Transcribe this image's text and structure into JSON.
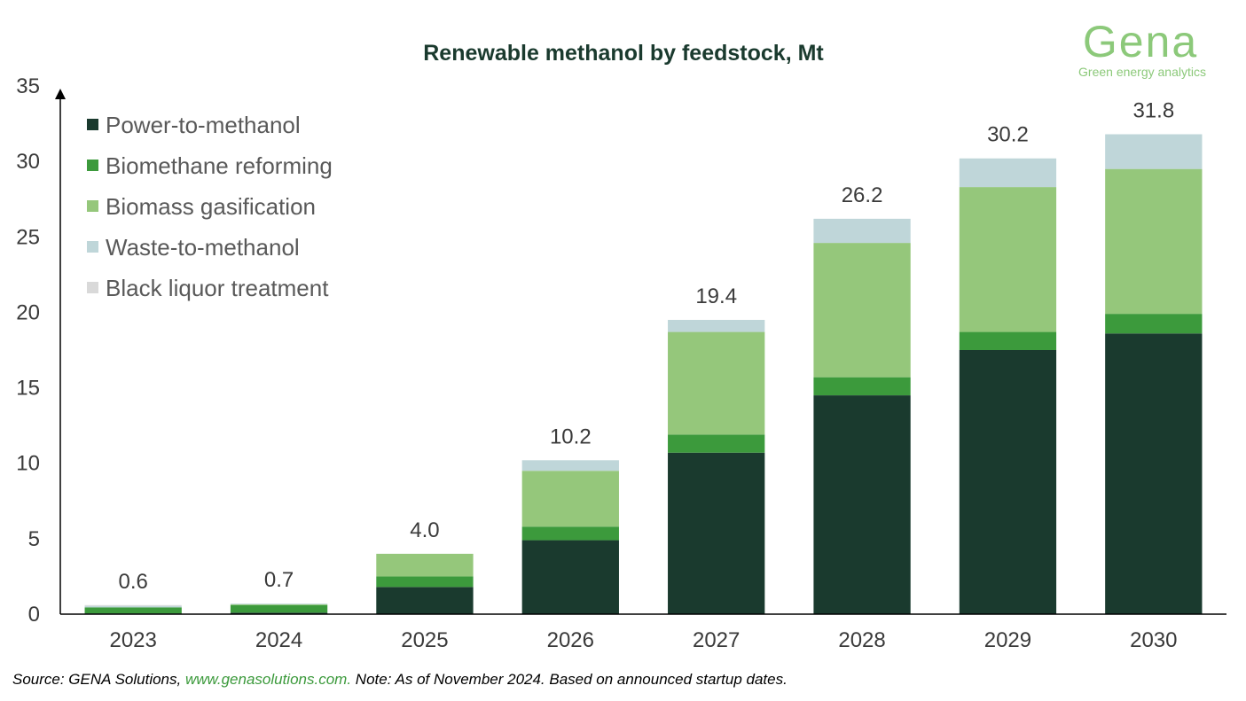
{
  "colors": {
    "title": "#1a3a2e",
    "power_to_methanol": "#1a3a2e",
    "biomethane_reforming": "#3c9a3c",
    "biomass_gasification": "#95c77b",
    "waste_to_methanol": "#bfd6d9",
    "black_liquor_treatment": "#d9d9d9",
    "logo": "#8cc97a",
    "link": "#3c9a3c"
  },
  "logo": {
    "word": "Gena",
    "tagline": "Green energy analytics"
  },
  "footer": {
    "source_prefix": "Source: GENA Solutions, ",
    "link_text": "www.genasolutions.com.",
    "note": " Note: As of November 2024. Based on announced startup dates."
  },
  "chart_data": {
    "type": "bar",
    "stacked": true,
    "title": "Renewable methanol by feedstock, Mt",
    "xlabel": "",
    "ylabel": "",
    "ylim": [
      0,
      35
    ],
    "yticks": [
      0,
      5,
      10,
      15,
      20,
      25,
      30,
      35
    ],
    "grid": false,
    "legend_position": "top-left",
    "categories": [
      "2023",
      "2024",
      "2025",
      "2026",
      "2027",
      "2028",
      "2029",
      "2030"
    ],
    "series": [
      {
        "name": "Power-to-methanol",
        "color_key": "power_to_methanol",
        "values": [
          0.05,
          0.1,
          1.8,
          4.9,
          10.7,
          14.5,
          17.5,
          18.6
        ]
      },
      {
        "name": "Biomethane reforming",
        "color_key": "biomethane_reforming",
        "values": [
          0.4,
          0.5,
          0.7,
          0.9,
          1.2,
          1.2,
          1.2,
          1.3
        ]
      },
      {
        "name": "Biomass gasification",
        "color_key": "biomass_gasification",
        "values": [
          0.0,
          0.05,
          1.5,
          3.7,
          6.8,
          8.9,
          9.6,
          9.6
        ]
      },
      {
        "name": "Waste-to-methanol",
        "color_key": "waste_to_methanol",
        "values": [
          0.1,
          0.05,
          0.0,
          0.7,
          0.8,
          1.6,
          1.9,
          2.3
        ]
      },
      {
        "name": "Black liquor treatment",
        "color_key": "black_liquor_treatment",
        "values": [
          0.05,
          0.0,
          0.0,
          0.0,
          0.0,
          0.0,
          0.0,
          0.0
        ]
      }
    ],
    "totals": [
      "0.6",
      "0.7",
      "4.0",
      "10.2",
      "19.4",
      "26.2",
      "30.2",
      "31.8"
    ]
  }
}
